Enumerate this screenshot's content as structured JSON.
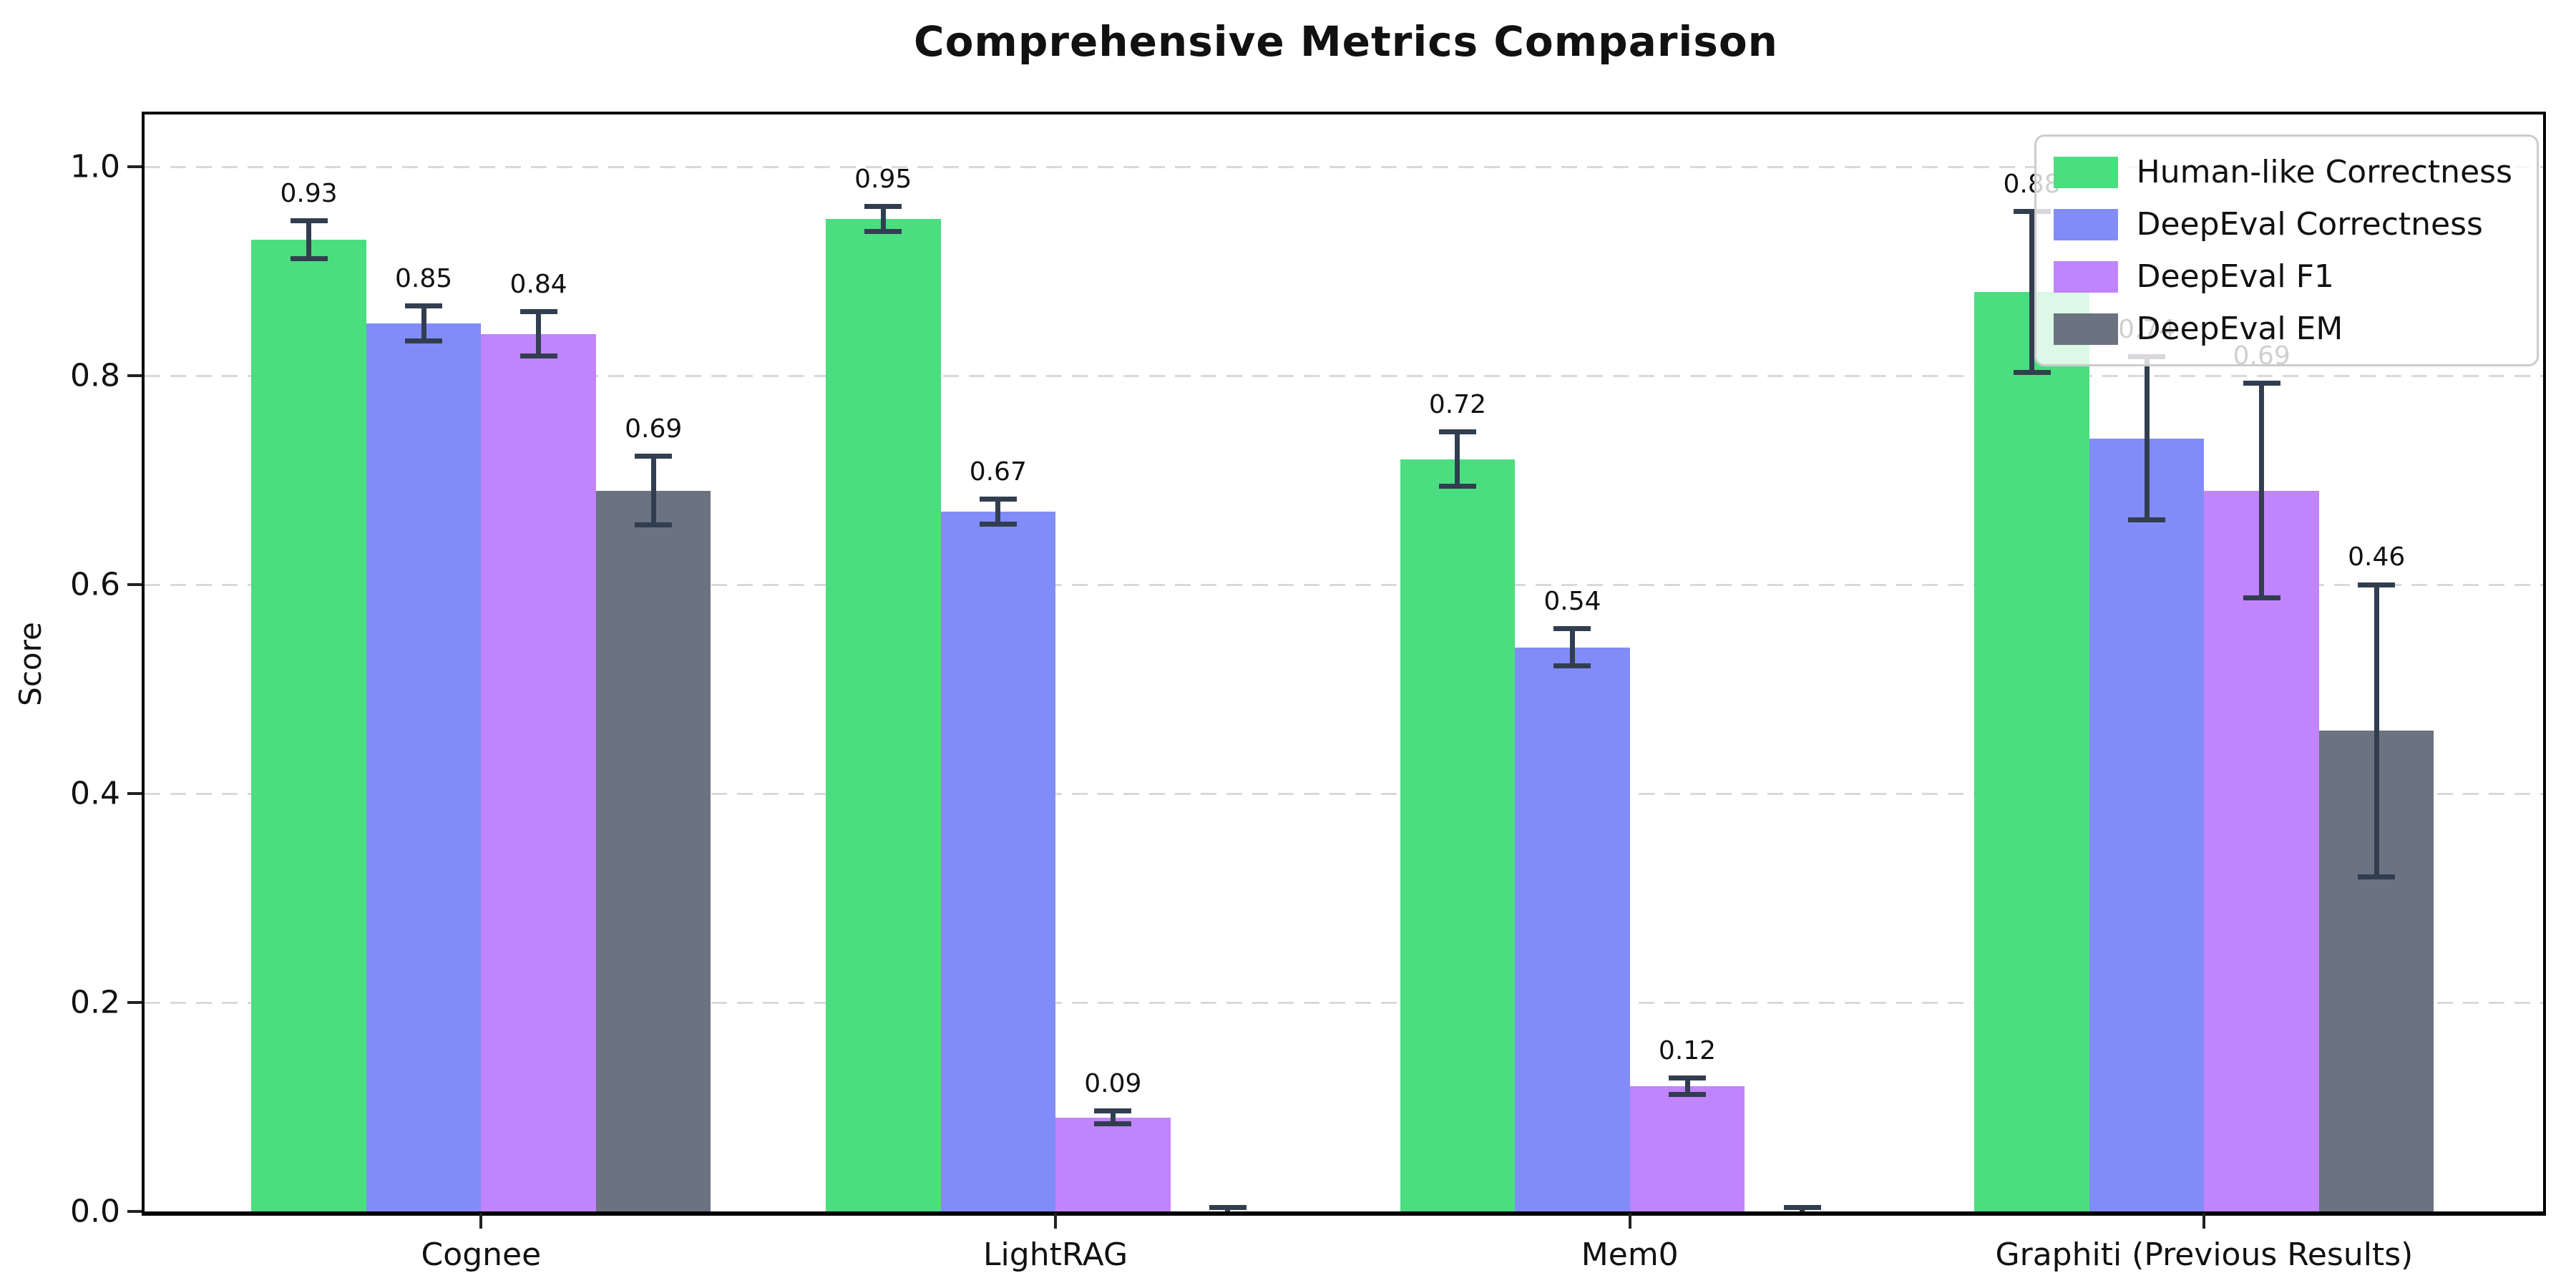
{
  "title": "Comprehensive Metrics Comparison",
  "ylabel": "Score",
  "chart_data": {
    "type": "bar",
    "title": "Comprehensive Metrics Comparison",
    "xlabel": "",
    "ylabel": "Score",
    "categories": [
      "Cognee",
      "LightRAG",
      "Mem0",
      "Graphiti (Previous Results)"
    ],
    "series": [
      {
        "name": "Human-like Correctness",
        "color": "#4ade80",
        "values": [
          0.93,
          0.95,
          0.72,
          0.88
        ],
        "errors": [
          0.018,
          0.012,
          0.026,
          0.077
        ],
        "value_labels": [
          "0.93",
          "0.95",
          "0.72",
          "0.88"
        ]
      },
      {
        "name": "DeepEval Correctness",
        "color": "#818cf8",
        "values": [
          0.85,
          0.67,
          0.54,
          0.74
        ],
        "errors": [
          0.017,
          0.012,
          0.018,
          0.078
        ],
        "value_labels": [
          "0.85",
          "0.67",
          "0.54",
          "0.74"
        ]
      },
      {
        "name": "DeepEval F1",
        "color": "#c084fc",
        "values": [
          0.84,
          0.09,
          0.12,
          0.69
        ],
        "errors": [
          0.021,
          0.006,
          0.008,
          0.103
        ],
        "value_labels": [
          "0.84",
          "0.09",
          "0.12",
          "0.69"
        ]
      },
      {
        "name": "DeepEval EM",
        "color": "#6b7280",
        "values": [
          0.69,
          0.0,
          0.0,
          0.46
        ],
        "errors": [
          0.033,
          0.004,
          0.004,
          0.14
        ],
        "value_labels": [
          "0.69",
          "",
          "",
          "0.46"
        ]
      }
    ],
    "yticks": [
      "0.0",
      "0.2",
      "0.4",
      "0.6",
      "0.8",
      "1.0"
    ],
    "ylim": [
      0,
      1.05
    ],
    "grid": "horizontal-dashed",
    "grid_color": "#d9d9d9",
    "error_bar_color": "#323e4f",
    "legend_position": "upper-right",
    "legend_entries": [
      "Human-like Correctness",
      "DeepEval Correctness",
      "DeepEval F1",
      "DeepEval EM"
    ]
  }
}
